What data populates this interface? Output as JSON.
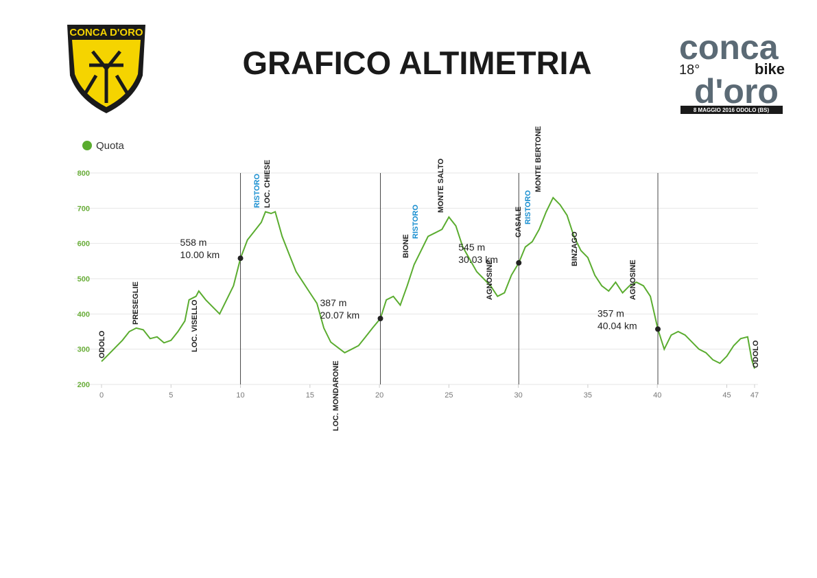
{
  "header": {
    "title": "GRAFICO ALTIMETRIA",
    "left_logo": "CONCA D'ORO",
    "right_logo": {
      "word1": "conca",
      "word2": "d'oro",
      "bike": "bike",
      "edition": "18°",
      "date": "8 MAGGIO 2016 ODOLO (BS)"
    }
  },
  "chart_data": {
    "type": "line",
    "grid": true,
    "series": [
      {
        "name": "Quota",
        "color": "#5aac2f",
        "x": [
          0,
          0.5,
          1,
          1.5,
          2,
          2.5,
          3,
          3.5,
          4,
          4.5,
          5,
          5.5,
          6,
          6.3,
          6.8,
          7,
          7.5,
          8,
          8.5,
          9,
          9.5,
          10,
          10.5,
          11,
          11.5,
          11.8,
          12.2,
          12.5,
          13,
          13.5,
          14,
          14.5,
          15,
          15.5,
          16,
          16.5,
          17,
          17.5,
          18,
          18.5,
          19,
          19.5,
          20.07,
          20.5,
          21,
          21.5,
          22,
          22.5,
          23,
          23.5,
          24,
          24.5,
          25,
          25.5,
          26,
          26.5,
          27,
          27.5,
          28,
          28.5,
          29,
          29.5,
          30.03,
          30.5,
          31,
          31.5,
          32,
          32.5,
          33,
          33.5,
          34,
          34.5,
          35,
          35.5,
          36,
          36.5,
          37,
          37.5,
          38,
          38.5,
          39,
          39.5,
          40.04,
          40.5,
          41,
          41.5,
          42,
          42.5,
          43,
          43.5,
          44,
          44.5,
          45,
          45.5,
          46,
          46.5,
          46.8,
          47
        ],
        "values": [
          265,
          285,
          305,
          325,
          350,
          360,
          355,
          330,
          335,
          318,
          325,
          350,
          380,
          440,
          450,
          465,
          440,
          420,
          400,
          440,
          480,
          558,
          610,
          635,
          660,
          690,
          685,
          690,
          620,
          570,
          520,
          490,
          460,
          430,
          360,
          320,
          305,
          290,
          300,
          310,
          335,
          360,
          387,
          440,
          450,
          425,
          480,
          540,
          580,
          620,
          630,
          640,
          675,
          650,
          590,
          555,
          520,
          500,
          480,
          450,
          460,
          510,
          545,
          590,
          605,
          640,
          690,
          730,
          710,
          680,
          620,
          580,
          560,
          510,
          480,
          465,
          490,
          460,
          480,
          490,
          480,
          450,
          357,
          300,
          340,
          350,
          340,
          320,
          300,
          290,
          270,
          260,
          280,
          310,
          330,
          335,
          270,
          245
        ]
      }
    ],
    "markers": [
      {
        "x": 10.0,
        "y": 558,
        "labels": [
          "558 m",
          "10.00 km"
        ]
      },
      {
        "x": 20.07,
        "y": 387,
        "labels": [
          "387 m",
          "20.07 km"
        ]
      },
      {
        "x": 30.03,
        "y": 545,
        "labels": [
          "545 m",
          "30.03 km"
        ]
      },
      {
        "x": 40.04,
        "y": 357,
        "labels": [
          "357 m",
          "40.04 km"
        ]
      }
    ],
    "annotations": [
      {
        "text": "ODOLO",
        "color": "#222"
      },
      {
        "text": "PRESEGLIE",
        "color": "#222"
      },
      {
        "text": "LOC. VISELLO",
        "color": "#222"
      },
      {
        "text": "RISTORO",
        "color": "#1a8fd0"
      },
      {
        "text": "LOC. CHIESE",
        "color": "#222"
      },
      {
        "text": "LOC. MONDARONE",
        "color": "#222"
      },
      {
        "text": "BIONE",
        "color": "#222"
      },
      {
        "text": "RISTORO",
        "color": "#1a8fd0"
      },
      {
        "text": "MONTE SALTO",
        "color": "#222"
      },
      {
        "text": "AGNOSINE",
        "color": "#222"
      },
      {
        "text": "CASALE",
        "color": "#222"
      },
      {
        "text": "RISTORO",
        "color": "#1a8fd0"
      },
      {
        "text": "MONTE BERTONE",
        "color": "#222"
      },
      {
        "text": "BINZAGO",
        "color": "#222"
      },
      {
        "text": "AGNOSINE",
        "color": "#222"
      },
      {
        "text": "ODOLO",
        "color": "#222"
      }
    ],
    "xlim": [
      0,
      47
    ],
    "xticks": [
      0,
      5,
      10,
      15,
      20,
      25,
      30,
      35,
      40,
      45,
      47
    ],
    "ylim": [
      200,
      800
    ],
    "yticks": [
      200,
      300,
      400,
      500,
      600,
      700,
      800
    ]
  }
}
